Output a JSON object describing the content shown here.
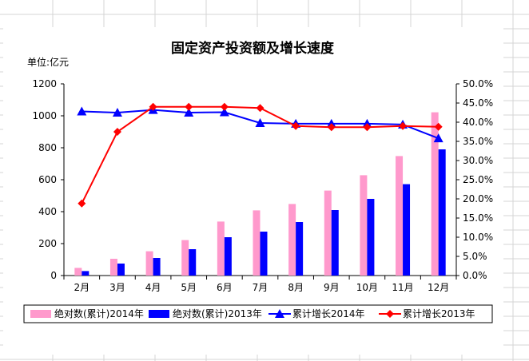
{
  "chart_data": {
    "type": "bar+line",
    "title": "固定资产投资额及增长速度",
    "unit_label": "单位:亿元",
    "categories": [
      "2月",
      "3月",
      "4月",
      "5月",
      "6月",
      "7月",
      "8月",
      "9月",
      "10月",
      "11月",
      "12月"
    ],
    "y_left": {
      "min": 0,
      "max": 1200,
      "ticks": [
        "0",
        "200",
        "400",
        "600",
        "800",
        "1000",
        "1200"
      ]
    },
    "y_right": {
      "min": 0,
      "max": 0.5,
      "ticks": [
        "0.0%",
        "5.0%",
        "10.0%",
        "15.0%",
        "20.0%",
        "25.0%",
        "30.0%",
        "35.0%",
        "40.0%",
        "45.0%",
        "50.0%"
      ]
    },
    "series": [
      {
        "name": "绝对数(累计)2014年",
        "kind": "bar",
        "axis": "left",
        "color": "#ff99cc",
        "values": [
          48,
          105,
          152,
          222,
          338,
          408,
          448,
          532,
          628,
          748,
          1022
        ]
      },
      {
        "name": "绝对数(累计)2013年",
        "kind": "bar",
        "axis": "left",
        "color": "#0000ff",
        "values": [
          28,
          75,
          110,
          165,
          240,
          275,
          335,
          410,
          480,
          572,
          790
        ]
      },
      {
        "name": "累计增长2014年",
        "kind": "line",
        "axis": "right",
        "color": "#0000ff",
        "marker": "triangle",
        "values": [
          0.428,
          0.425,
          0.432,
          0.425,
          0.426,
          0.398,
          0.396,
          0.396,
          0.396,
          0.394,
          0.358
        ]
      },
      {
        "name": "累计增长2013年",
        "kind": "line",
        "axis": "right",
        "color": "#ff0000",
        "marker": "diamond",
        "values": [
          0.188,
          0.375,
          0.44,
          0.44,
          0.44,
          0.437,
          0.39,
          0.387,
          0.387,
          0.39,
          0.388
        ]
      }
    ],
    "grid": false,
    "legend_position": "bottom"
  }
}
